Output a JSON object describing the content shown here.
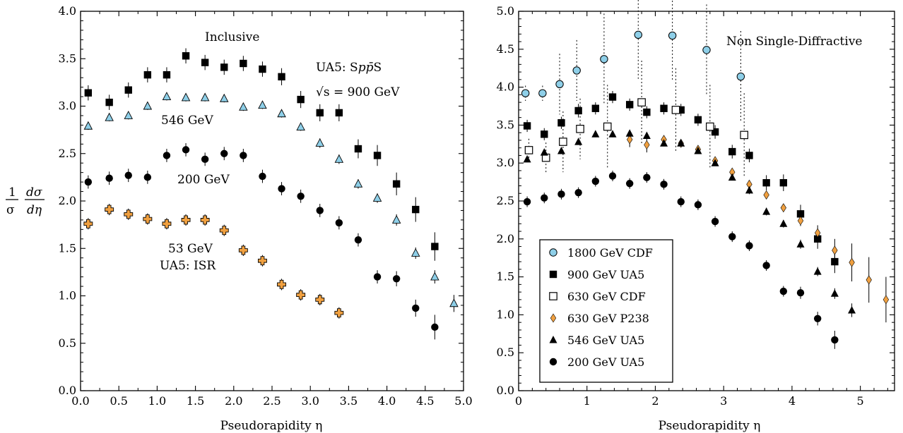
{
  "chart_data": [
    {
      "type": "scatter",
      "panel": "left",
      "xlabel": "Pseudorapidity η",
      "ylabel_lines": [
        "1",
        "σ",
        "dσ",
        "dη"
      ],
      "xlim": [
        0.0,
        5.0
      ],
      "ylim": [
        0.0,
        4.0
      ],
      "x_ticks": [
        "0.0",
        "0.5",
        "1.0",
        "1.5",
        "2.0",
        "2.5",
        "3.0",
        "3.5",
        "4.0",
        "4.5",
        "5.0"
      ],
      "y_ticks": [
        "0.0",
        "0.5",
        "1.0",
        "1.5",
        "2.0",
        "2.5",
        "3.0",
        "3.5",
        "4.0"
      ],
      "annotations": {
        "title": "Inclusive",
        "experiment_prefix": "UA5: S",
        "experiment_pbar": "pp̄",
        "experiment_suffix": "S",
        "sqrt_s_label": "√s = 900 GeV",
        "label_546": "546 GeV",
        "label_200": "200 GeV",
        "label_53": "53 GeV",
        "label_isr": "UA5: ISR"
      },
      "series": [
        {
          "energy": "900 GeV",
          "marker": "square-filled",
          "color": "#000000",
          "points": [
            [
              0.1,
              3.14,
              0.08
            ],
            [
              0.375,
              3.04,
              0.08
            ],
            [
              0.625,
              3.17,
              0.08
            ],
            [
              0.875,
              3.33,
              0.08
            ],
            [
              1.125,
              3.33,
              0.08
            ],
            [
              1.375,
              3.53,
              0.08
            ],
            [
              1.625,
              3.46,
              0.08
            ],
            [
              1.875,
              3.41,
              0.08
            ],
            [
              2.125,
              3.45,
              0.08
            ],
            [
              2.375,
              3.39,
              0.08
            ],
            [
              2.625,
              3.31,
              0.09
            ],
            [
              2.875,
              3.07,
              0.09
            ],
            [
              3.125,
              2.93,
              0.09
            ],
            [
              3.375,
              2.93,
              0.09
            ],
            [
              3.625,
              2.55,
              0.1
            ],
            [
              3.875,
              2.48,
              0.11
            ],
            [
              4.125,
              2.18,
              0.12
            ],
            [
              4.375,
              1.91,
              0.13
            ],
            [
              4.625,
              1.52,
              0.15
            ]
          ]
        },
        {
          "energy": "546 GeV",
          "marker": "triangle",
          "color": "#8ecfe8",
          "points": [
            [
              0.1,
              2.79,
              0.04
            ],
            [
              0.375,
              2.88,
              0.04
            ],
            [
              0.625,
              2.9,
              0.04
            ],
            [
              0.875,
              3.0,
              0.04
            ],
            [
              1.125,
              3.1,
              0.04
            ],
            [
              1.375,
              3.09,
              0.04
            ],
            [
              1.625,
              3.09,
              0.04
            ],
            [
              1.875,
              3.08,
              0.04
            ],
            [
              2.125,
              2.99,
              0.04
            ],
            [
              2.375,
              3.01,
              0.04
            ],
            [
              2.625,
              2.92,
              0.04
            ],
            [
              2.875,
              2.78,
              0.04
            ],
            [
              3.125,
              2.61,
              0.05
            ],
            [
              3.375,
              2.44,
              0.05
            ],
            [
              3.625,
              2.18,
              0.05
            ],
            [
              3.875,
              2.03,
              0.05
            ],
            [
              4.125,
              1.8,
              0.06
            ],
            [
              4.375,
              1.45,
              0.06
            ],
            [
              4.625,
              1.2,
              0.07
            ],
            [
              4.875,
              0.92,
              0.09
            ]
          ]
        },
        {
          "energy": "200 GeV",
          "marker": "circle-filled",
          "color": "#000000",
          "points": [
            [
              0.1,
              2.2,
              0.07
            ],
            [
              0.375,
              2.24,
              0.07
            ],
            [
              0.625,
              2.27,
              0.07
            ],
            [
              0.875,
              2.25,
              0.07
            ],
            [
              1.125,
              2.48,
              0.07
            ],
            [
              1.375,
              2.54,
              0.07
            ],
            [
              1.625,
              2.44,
              0.07
            ],
            [
              1.875,
              2.5,
              0.07
            ],
            [
              2.125,
              2.48,
              0.07
            ],
            [
              2.375,
              2.26,
              0.07
            ],
            [
              2.625,
              2.13,
              0.07
            ],
            [
              2.875,
              2.05,
              0.07
            ],
            [
              3.125,
              1.9,
              0.07
            ],
            [
              3.375,
              1.77,
              0.07
            ],
            [
              3.625,
              1.59,
              0.07
            ],
            [
              3.875,
              1.2,
              0.07
            ],
            [
              4.125,
              1.18,
              0.08
            ],
            [
              4.375,
              0.87,
              0.09
            ],
            [
              4.625,
              0.67,
              0.13
            ]
          ]
        },
        {
          "energy": "53 GeV",
          "marker": "cross",
          "color": "#f0a040",
          "points": [
            [
              0.1,
              1.76,
              0.06
            ],
            [
              0.375,
              1.91,
              0.06
            ],
            [
              0.625,
              1.86,
              0.06
            ],
            [
              0.875,
              1.81,
              0.06
            ],
            [
              1.125,
              1.76,
              0.06
            ],
            [
              1.375,
              1.8,
              0.06
            ],
            [
              1.625,
              1.8,
              0.06
            ],
            [
              1.875,
              1.69,
              0.06
            ],
            [
              2.125,
              1.48,
              0.06
            ],
            [
              2.375,
              1.37,
              0.06
            ],
            [
              2.625,
              1.12,
              0.06
            ],
            [
              2.875,
              1.01,
              0.06
            ],
            [
              3.125,
              0.96,
              0.06
            ],
            [
              3.375,
              0.82,
              0.06
            ]
          ]
        }
      ]
    },
    {
      "type": "scatter",
      "panel": "right",
      "xlabel": "Pseudorapidity η",
      "xlim": [
        0,
        5.5
      ],
      "ylim": [
        0.0,
        5.0
      ],
      "x_ticks": [
        "0",
        "1",
        "2",
        "3",
        "4",
        "5"
      ],
      "y_ticks": [
        "0.0",
        "0.5",
        "1.0",
        "1.5",
        "2.0",
        "2.5",
        "3.0",
        "3.5",
        "4.0",
        "4.5",
        "5.0"
      ],
      "annotations": {
        "title": "Non Single-Diffractive"
      },
      "legend_position": "bottom-left",
      "series": [
        {
          "name": "1800 GeV CDF",
          "marker": "circle-open",
          "color": "#8ecfe8",
          "dotted_error": true,
          "points": [
            [
              0.1,
              3.92,
              0.1
            ],
            [
              0.35,
              3.92,
              0.1
            ],
            [
              0.6,
              4.04,
              0.4
            ],
            [
              0.85,
              4.22,
              0.4
            ],
            [
              1.25,
              4.37,
              0.6
            ],
            [
              1.75,
              4.69,
              0.6
            ],
            [
              2.25,
              4.68,
              0.6
            ],
            [
              2.75,
              4.49,
              0.6
            ],
            [
              3.25,
              4.14,
              0.6
            ]
          ]
        },
        {
          "name": "900 GeV UA5",
          "marker": "square-filled",
          "color": "#000000",
          "points": [
            [
              0.125,
              3.49,
              0.08
            ],
            [
              0.375,
              3.38,
              0.08
            ],
            [
              0.625,
              3.53,
              0.08
            ],
            [
              0.875,
              3.69,
              0.09
            ],
            [
              1.125,
              3.72,
              0.08
            ],
            [
              1.375,
              3.87,
              0.08
            ],
            [
              1.625,
              3.77,
              0.08
            ],
            [
              1.875,
              3.67,
              0.08
            ],
            [
              2.125,
              3.72,
              0.08
            ],
            [
              2.375,
              3.7,
              0.08
            ],
            [
              2.625,
              3.57,
              0.08
            ],
            [
              2.875,
              3.41,
              0.09
            ],
            [
              3.125,
              3.15,
              0.09
            ],
            [
              3.375,
              3.1,
              0.09
            ],
            [
              3.625,
              2.74,
              0.1
            ],
            [
              3.875,
              2.74,
              0.11
            ],
            [
              4.125,
              2.33,
              0.12
            ],
            [
              4.375,
              2.0,
              0.13
            ],
            [
              4.625,
              1.7,
              0.15
            ]
          ]
        },
        {
          "name": "630 GeV CDF",
          "marker": "square-open",
          "color": "#000000",
          "dotted_error": true,
          "points": [
            [
              0.15,
              3.17,
              0.15
            ],
            [
              0.4,
              3.07,
              0.2
            ],
            [
              0.65,
              3.28,
              0.4
            ],
            [
              0.9,
              3.45,
              0.4
            ],
            [
              1.3,
              3.48,
              0.55
            ],
            [
              1.8,
              3.8,
              0.55
            ],
            [
              2.3,
              3.7,
              0.55
            ],
            [
              2.8,
              3.48,
              0.55
            ],
            [
              3.3,
              3.37,
              0.55
            ]
          ]
        },
        {
          "name": "630 GeV P238",
          "marker": "diamond",
          "color": "#f0a040",
          "points": [
            [
              1.625,
              3.31,
              0.1
            ],
            [
              1.875,
              3.24,
              0.1
            ],
            [
              2.125,
              3.31,
              0.05
            ],
            [
              2.375,
              3.26,
              0.05
            ],
            [
              2.625,
              3.18,
              0.05
            ],
            [
              2.875,
              3.03,
              0.05
            ],
            [
              3.125,
              2.88,
              0.05
            ],
            [
              3.375,
              2.72,
              0.05
            ],
            [
              3.625,
              2.58,
              0.05
            ],
            [
              3.875,
              2.41,
              0.05
            ],
            [
              4.125,
              2.24,
              0.07
            ],
            [
              4.375,
              2.08,
              0.1
            ],
            [
              4.625,
              1.85,
              0.15
            ],
            [
              4.875,
              1.69,
              0.25
            ],
            [
              5.125,
              1.46,
              0.3
            ],
            [
              5.375,
              1.2,
              0.3
            ]
          ]
        },
        {
          "name": "546 GeV UA5",
          "marker": "triangle",
          "color": "#000000",
          "points": [
            [
              0.125,
              3.05,
              0.04
            ],
            [
              0.375,
              3.14,
              0.04
            ],
            [
              0.625,
              3.16,
              0.04
            ],
            [
              0.875,
              3.28,
              0.04
            ],
            [
              1.125,
              3.38,
              0.04
            ],
            [
              1.375,
              3.38,
              0.04
            ],
            [
              1.625,
              3.39,
              0.04
            ],
            [
              1.875,
              3.36,
              0.04
            ],
            [
              2.125,
              3.26,
              0.04
            ],
            [
              2.375,
              3.26,
              0.04
            ],
            [
              2.625,
              3.16,
              0.04
            ],
            [
              2.875,
              3.0,
              0.04
            ],
            [
              3.125,
              2.81,
              0.04
            ],
            [
              3.375,
              2.64,
              0.05
            ],
            [
              3.625,
              2.36,
              0.05
            ],
            [
              3.875,
              2.2,
              0.05
            ],
            [
              4.125,
              1.93,
              0.06
            ],
            [
              4.375,
              1.57,
              0.06
            ],
            [
              4.625,
              1.28,
              0.07
            ],
            [
              4.875,
              1.06,
              0.09
            ]
          ]
        },
        {
          "name": "200 GeV UA5",
          "marker": "circle-filled",
          "color": "#000000",
          "points": [
            [
              0.125,
              2.49,
              0.07
            ],
            [
              0.375,
              2.54,
              0.07
            ],
            [
              0.625,
              2.59,
              0.07
            ],
            [
              0.875,
              2.61,
              0.07
            ],
            [
              1.125,
              2.76,
              0.07
            ],
            [
              1.375,
              2.83,
              0.07
            ],
            [
              1.625,
              2.73,
              0.07
            ],
            [
              1.875,
              2.81,
              0.07
            ],
            [
              2.125,
              2.72,
              0.07
            ],
            [
              2.375,
              2.49,
              0.07
            ],
            [
              2.625,
              2.45,
              0.07
            ],
            [
              2.875,
              2.23,
              0.07
            ],
            [
              3.125,
              2.03,
              0.07
            ],
            [
              3.375,
              1.91,
              0.07
            ],
            [
              3.625,
              1.65,
              0.07
            ],
            [
              3.875,
              1.31,
              0.07
            ],
            [
              4.125,
              1.29,
              0.08
            ],
            [
              4.375,
              0.95,
              0.09
            ],
            [
              4.625,
              0.67,
              0.12
            ]
          ]
        }
      ]
    }
  ]
}
